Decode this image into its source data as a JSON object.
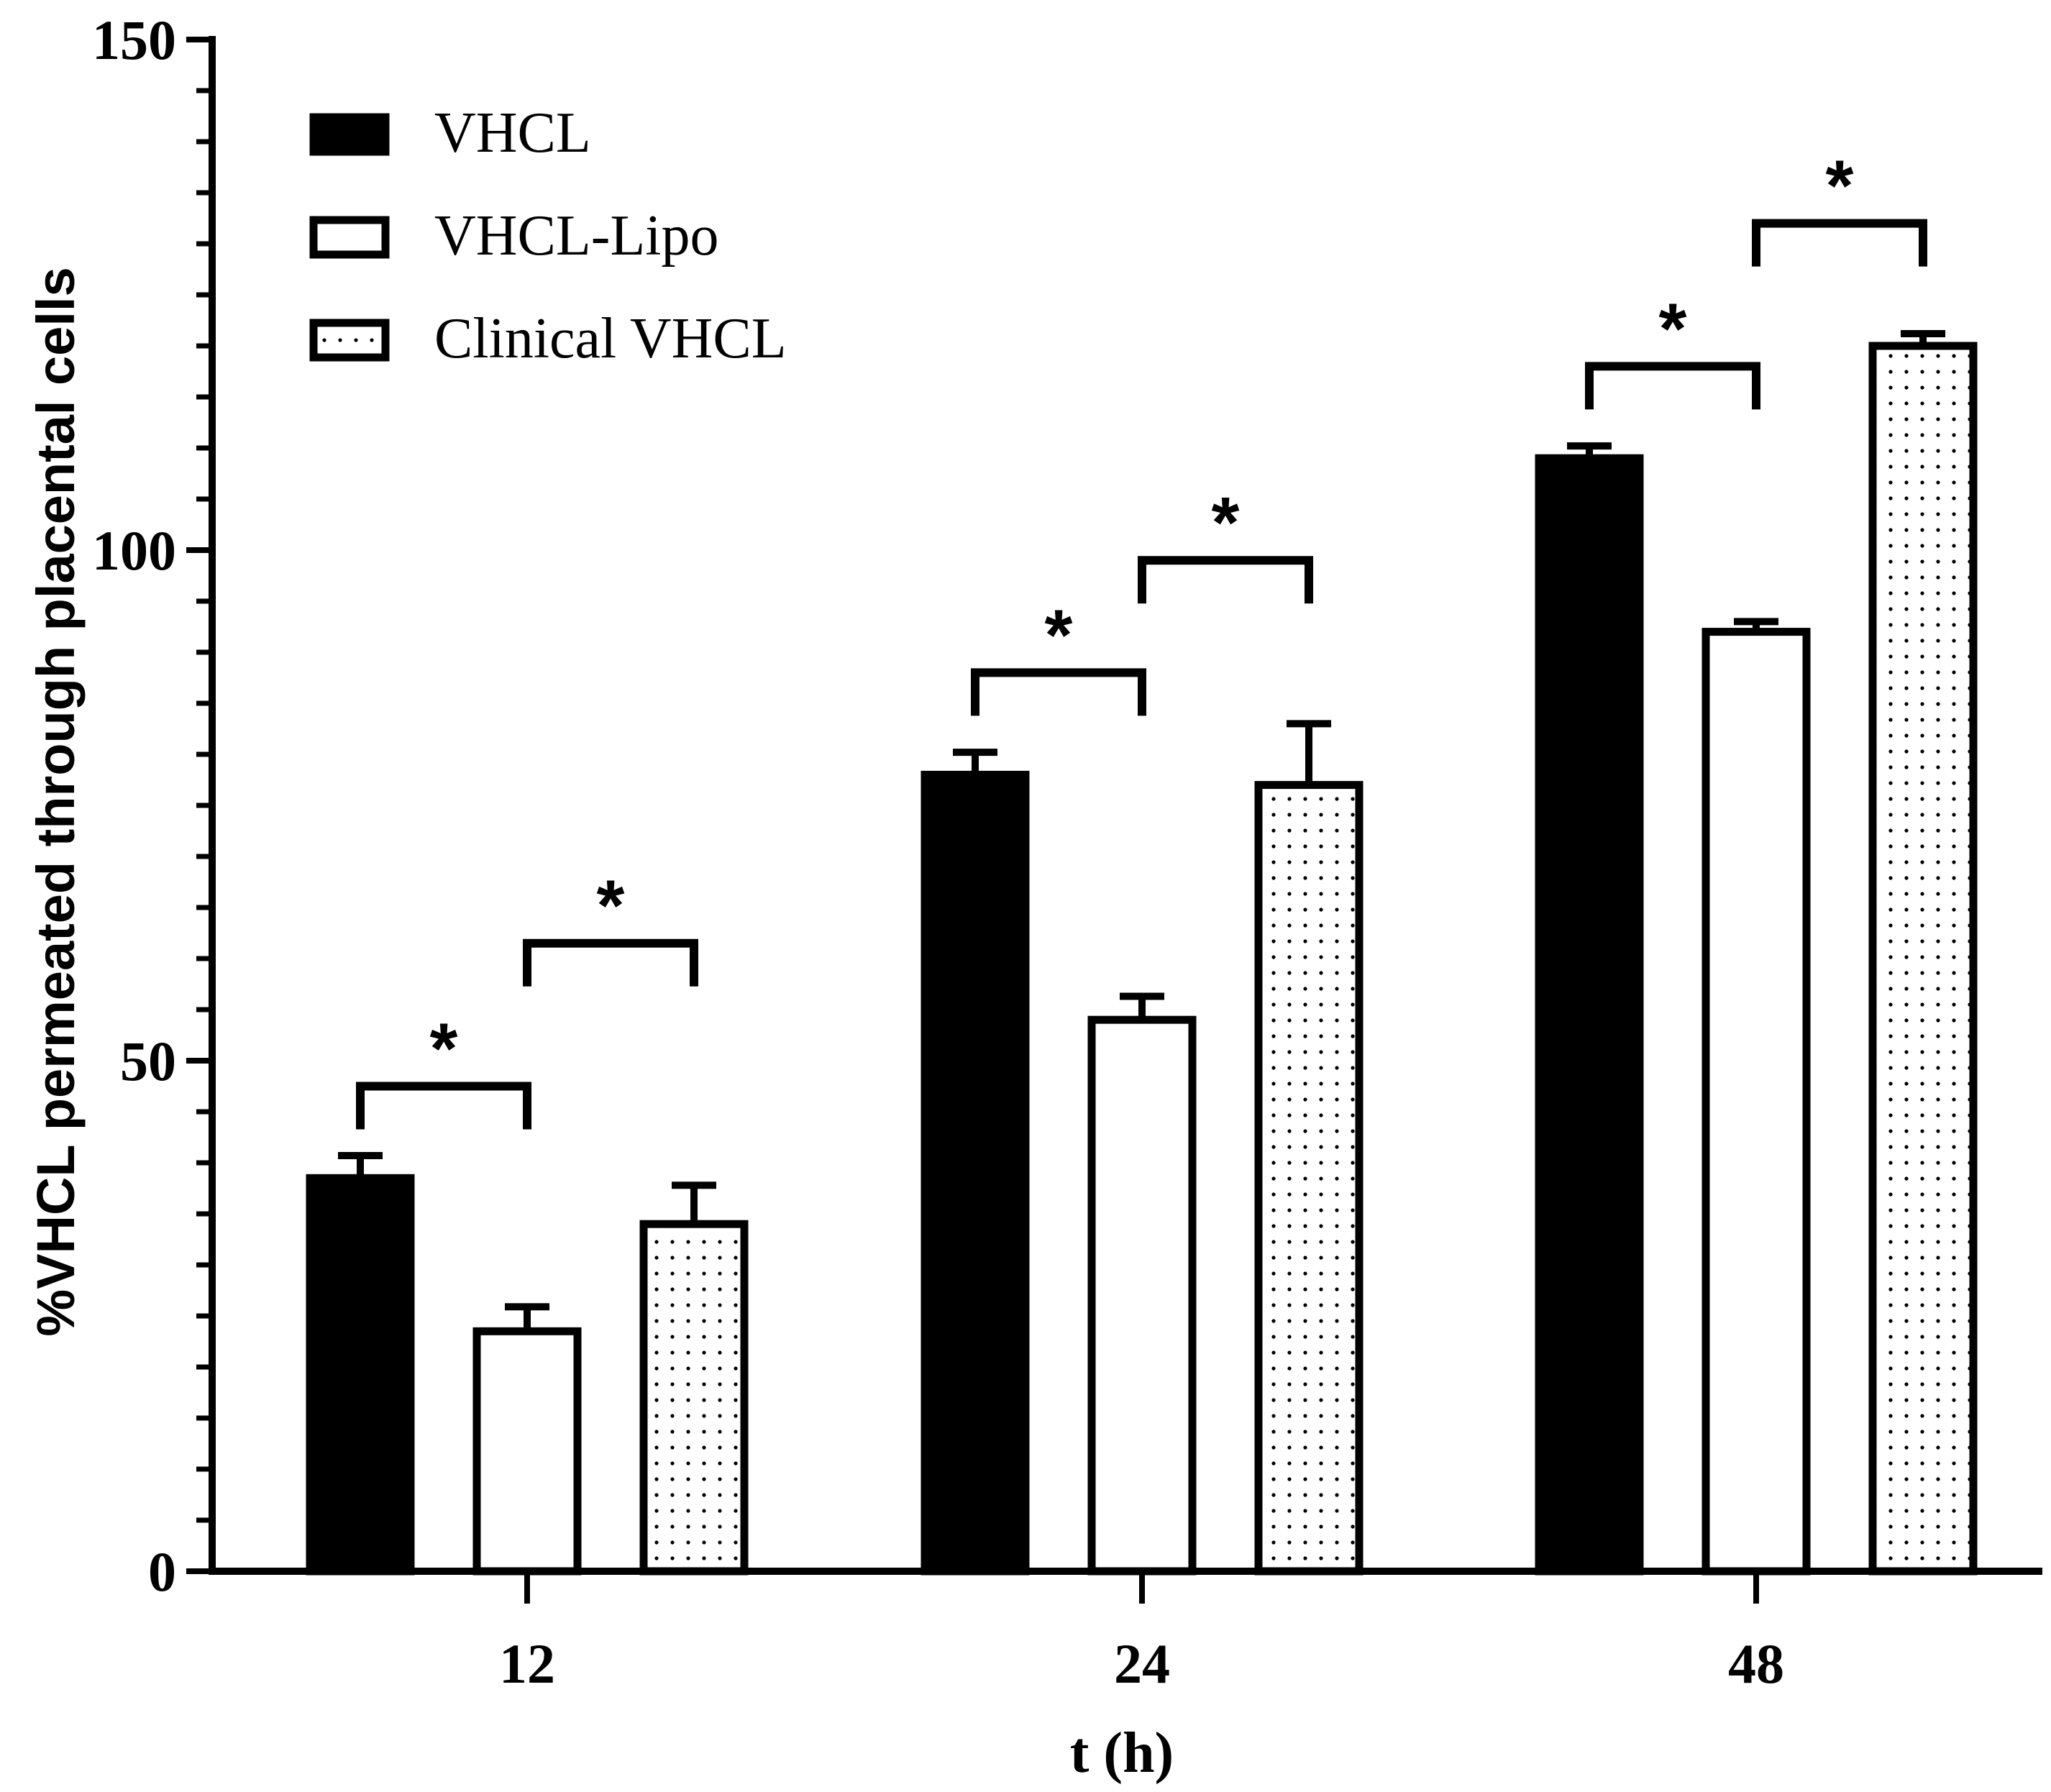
{
  "chart_data": {
    "type": "bar",
    "title": "",
    "xlabel": "t (h)",
    "ylabel": "%VHCL permeated through placental cells",
    "ylim": [
      0,
      150
    ],
    "yticks": [
      "0",
      "50",
      "100",
      "150"
    ],
    "categories": [
      "12",
      "24",
      "48"
    ],
    "series": [
      {
        "name": "VHCL",
        "values": [
          38.5,
          78,
          109
        ],
        "errors": [
          2.2,
          2.2,
          1.2
        ],
        "fill": "solid"
      },
      {
        "name": "VHCL-Lipo",
        "values": [
          23.5,
          54,
          92
        ],
        "errors": [
          2.4,
          2.3,
          1.0
        ],
        "fill": "white"
      },
      {
        "name": "Clinical VHCL",
        "values": [
          34,
          77,
          120
        ],
        "errors": [
          3.8,
          6.0,
          1.2
        ],
        "fill": "dotted"
      }
    ],
    "significance": [
      {
        "category": "12",
        "between": [
          "VHCL",
          "VHCL-Lipo"
        ],
        "label": "*",
        "level": 47.5
      },
      {
        "category": "12",
        "between": [
          "VHCL-Lipo",
          "Clinical VHCL"
        ],
        "label": "*",
        "level": 61.5
      },
      {
        "category": "24",
        "between": [
          "VHCL",
          "VHCL-Lipo"
        ],
        "label": "*",
        "level": 88
      },
      {
        "category": "24",
        "between": [
          "VHCL-Lipo",
          "Clinical VHCL"
        ],
        "label": "*",
        "level": 99
      },
      {
        "category": "48",
        "between": [
          "VHCL",
          "VHCL-Lipo"
        ],
        "label": "*",
        "level": 118
      },
      {
        "category": "48",
        "between": [
          "VHCL-Lipo",
          "Clinical VHCL"
        ],
        "label": "*",
        "level": 132
      }
    ],
    "legend_position": "top-left",
    "grid": false
  },
  "colors": {
    "bar_solid": "#000000",
    "bar_white": "#ffffff",
    "dot": "#000000",
    "axis": "#000000"
  }
}
